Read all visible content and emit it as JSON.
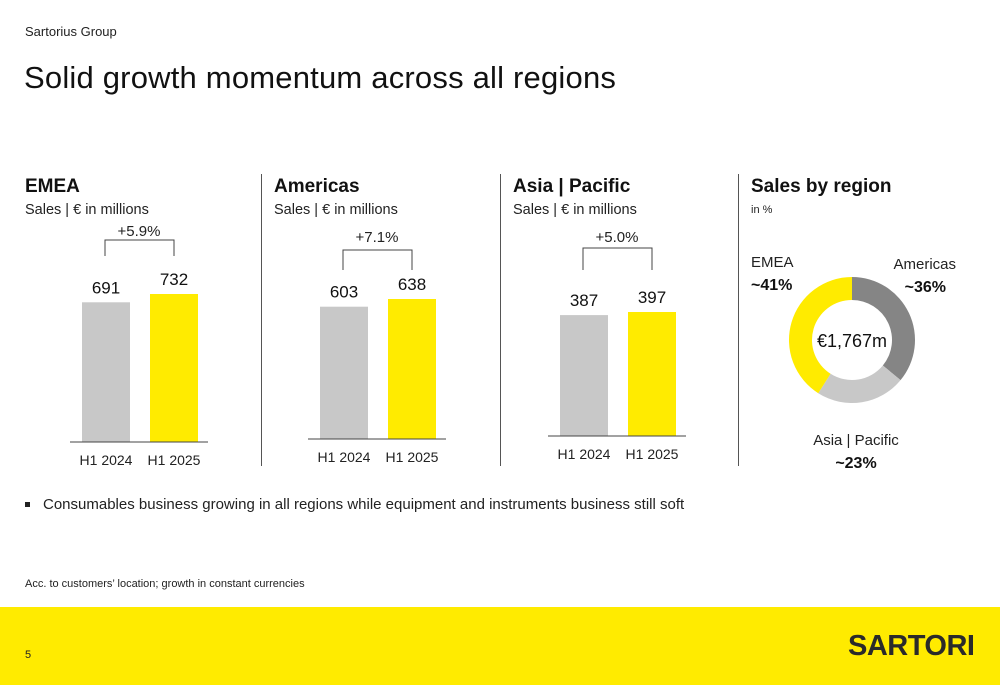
{
  "header": {
    "company": "Sartorius Group",
    "title": "Solid growth momentum across all regions"
  },
  "colors": {
    "prior_year": "#c8c8c8",
    "current_year": "#ffeb00",
    "americas_segment": "#858585",
    "asia_segment": "#c8c8c8",
    "emea_segment": "#ffeb00",
    "footer": "#ffeb00"
  },
  "panels": [
    {
      "title": "EMEA",
      "subtitle": "Sales | € in millions",
      "growth": "+5.9%"
    },
    {
      "title": "Americas",
      "subtitle": "Sales | € in millions",
      "growth": "+7.1%"
    },
    {
      "title": "Asia | Pacific",
      "subtitle": "Sales | € in millions",
      "growth": "+5.0%"
    },
    {
      "title": "Sales by region",
      "subtitle": "in %"
    }
  ],
  "chart_data": [
    {
      "type": "bar",
      "title": "EMEA",
      "categories": [
        "H1 2024",
        "H1 2025"
      ],
      "values": [
        691,
        732
      ],
      "value_labels": [
        "691",
        "732"
      ],
      "annotation": "+5.9%"
    },
    {
      "type": "bar",
      "title": "Americas",
      "categories": [
        "H1 2024",
        "H1 2025"
      ],
      "values": [
        603,
        638
      ],
      "value_labels": [
        "603",
        "638"
      ],
      "annotation": "+7.1%"
    },
    {
      "type": "bar",
      "title": "Asia | Pacific",
      "categories": [
        "H1 2024",
        "H1 2025"
      ],
      "values": [
        387,
        397
      ],
      "value_labels": [
        "387",
        "397"
      ],
      "annotation": "+5.0%"
    },
    {
      "type": "pie",
      "title": "Sales by region",
      "center_label": "€1,767m",
      "slices": [
        {
          "label": "Americas",
          "value": 36,
          "value_label": "~36%"
        },
        {
          "label": "Asia | Pacific",
          "value": 23,
          "value_label": "~23%"
        },
        {
          "label": "EMEA",
          "value": 41,
          "value_label": "~41%"
        }
      ]
    }
  ],
  "bullets": [
    "Consumables business growing in all regions while equipment and instruments business still soft"
  ],
  "footnote": "Acc. to customers’ location; growth in constant currencies",
  "footer": {
    "page_number": "5",
    "logo": "SARTORIUS"
  }
}
